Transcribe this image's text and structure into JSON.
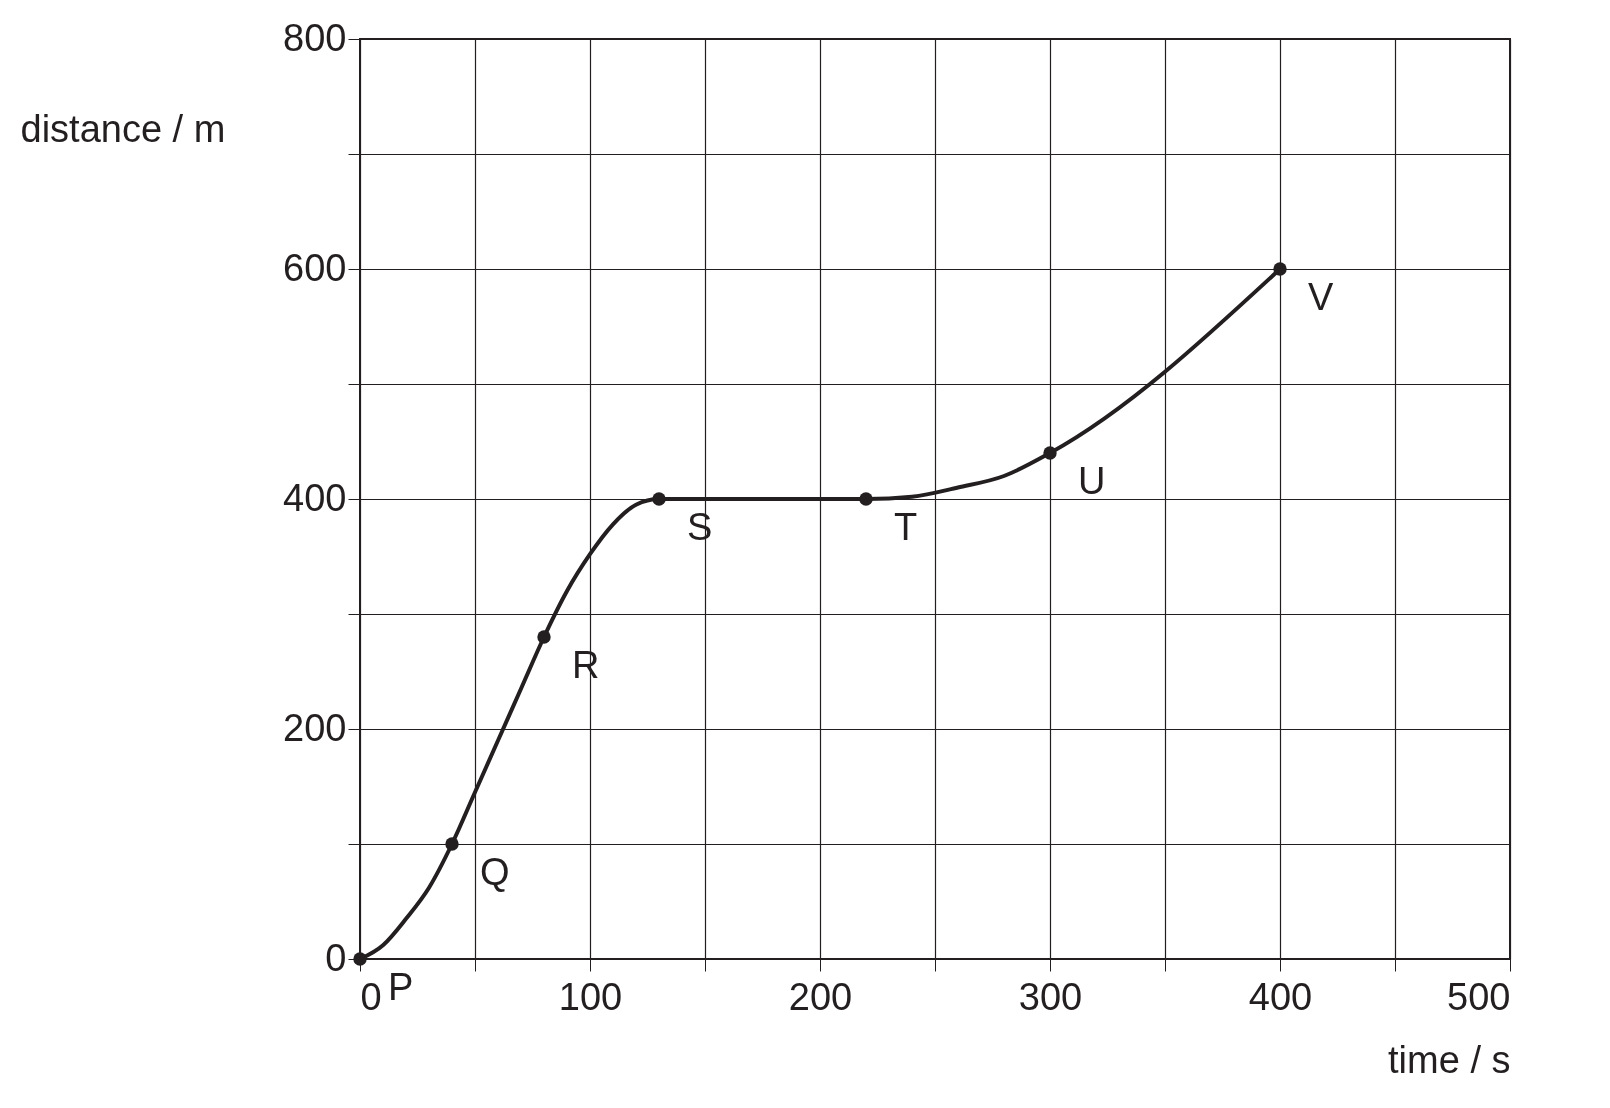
{
  "chart_data": {
    "type": "line",
    "xlabel": "time / s",
    "ylabel": "distance / m",
    "series": [
      {
        "color": "#231f20",
        "x": [
          0,
          10,
          20,
          30,
          40,
          50,
          60,
          70,
          80,
          90,
          100,
          110,
          120,
          130,
          220,
          240,
          260,
          280,
          300,
          400
        ],
        "values": [
          0,
          12,
          35,
          62,
          100,
          145,
          190,
          235,
          280,
          320,
          352,
          378,
          395,
          400,
          400,
          402,
          410,
          420,
          440,
          600
        ]
      },
      {
        "type": "scatter",
        "color": "#231f20",
        "marker": "circle",
        "x": [
          0,
          40,
          80,
          130,
          220,
          300,
          400
        ],
        "values": [
          0,
          100,
          280,
          400,
          400,
          440,
          600
        ]
      }
    ],
    "annotations": [
      {
        "text": "P",
        "x": 0,
        "y": 0
      },
      {
        "text": "Q",
        "x": 40,
        "y": 100
      },
      {
        "text": "R",
        "x": 80,
        "y": 280
      },
      {
        "text": "S",
        "x": 130,
        "y": 400
      },
      {
        "text": "T",
        "x": 220,
        "y": 400
      },
      {
        "text": "U",
        "x": 300,
        "y": 440
      },
      {
        "text": "V",
        "x": 400,
        "y": 600
      }
    ],
    "xlim": [
      0,
      500
    ],
    "ylim": [
      0,
      800
    ],
    "xticks": [
      0,
      {
        "value": 50,
        "label": null
      },
      100,
      {
        "value": 150,
        "label": null
      },
      200,
      {
        "value": 250,
        "label": null
      },
      300,
      {
        "value": 350,
        "label": null
      },
      400,
      {
        "value": 450,
        "label": null
      },
      500
    ],
    "yticks": [
      0,
      {
        "value": 100,
        "label": null
      },
      200,
      {
        "value": 300,
        "label": null
      },
      400,
      {
        "value": 500,
        "label": null
      },
      600,
      {
        "value": 700,
        "label": null
      },
      800
    ],
    "grid": true
  }
}
